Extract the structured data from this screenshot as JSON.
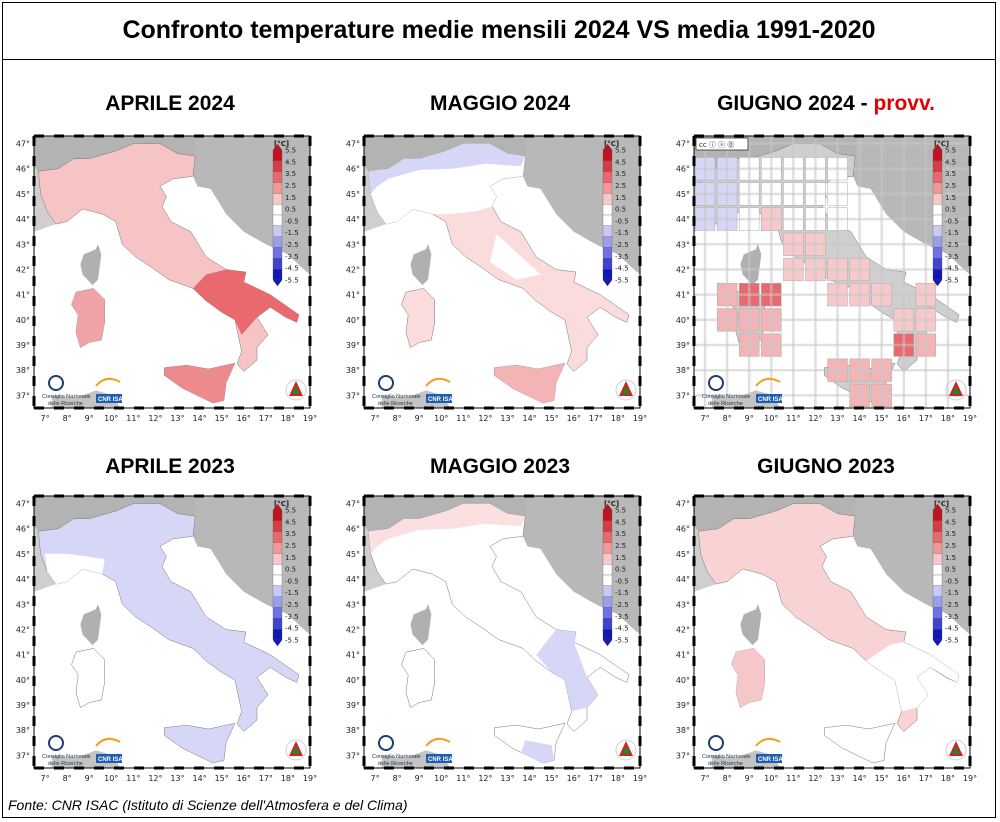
{
  "title": "Confronto temperature medie mensili 2024 VS media 1991-2020",
  "source": "Fonte: CNR ISAC (Istituto di Scienze dell'Atmosfera e del Clima)",
  "colors": {
    "warm_strong": "#e86a6f",
    "warm_light": "#f7c4c6",
    "cool_light": "#d6d7f7",
    "cool_strong": "#b7b9ef",
    "neutral": "#ffffff",
    "land_outside": "#bdbdbd",
    "sea": "#ffffff"
  },
  "colorbar": {
    "unit": "[°C]",
    "labels": [
      "5.5",
      "4.5",
      "3.5",
      "2.5",
      "1.5",
      "0.5",
      "-0.5",
      "-1.5",
      "-2.5",
      "-3.5",
      "-4.5",
      "-5.5"
    ],
    "colors": [
      "#c1121f",
      "#d63c44",
      "#e8686d",
      "#f39799",
      "#fac7c8",
      "#ffffff",
      "#ffffff",
      "#c9c9f7",
      "#9b9ded",
      "#6f72e0",
      "#3f43cf",
      "#1116b8"
    ]
  },
  "axes": {
    "lon_labels": [
      "7°",
      "8°",
      "9°",
      "10°",
      "11°",
      "12°",
      "13°",
      "14°",
      "15°",
      "16°",
      "17°",
      "18°",
      "19°"
    ],
    "lat_labels": [
      "47°",
      "46°",
      "45°",
      "44°",
      "43°",
      "42°",
      "41°",
      "40°",
      "39°",
      "38°",
      "37°"
    ]
  },
  "logos": {
    "cnr_line1": "Consiglio Nazionale",
    "cnr_line2": "delle Ricerche",
    "isac": "CNR ISAC"
  },
  "panels": [
    {
      "title": "APRILE 2024",
      "suffix": "",
      "anomaly": "warm",
      "hot_south": true,
      "grid": false
    },
    {
      "title": "MAGGIO 2024",
      "suffix": "",
      "anomaly": "mixed_cool_north",
      "hot_south": false,
      "grid": false
    },
    {
      "title": "GIUGNO 2024",
      "suffix": "provv.",
      "anomaly": "grid",
      "hot_south": false,
      "grid": true,
      "cc_badge": "cc ⓘ ⓢ ⓪"
    },
    {
      "title": "APRILE 2023",
      "suffix": "",
      "anomaly": "cool",
      "hot_south": false,
      "grid": false
    },
    {
      "title": "MAGGIO 2023",
      "suffix": "",
      "anomaly": "neutral_cool",
      "hot_south": false,
      "grid": false
    },
    {
      "title": "GIUGNO 2023",
      "suffix": "",
      "anomaly": "warm_light",
      "hot_south": false,
      "grid": false
    }
  ]
}
